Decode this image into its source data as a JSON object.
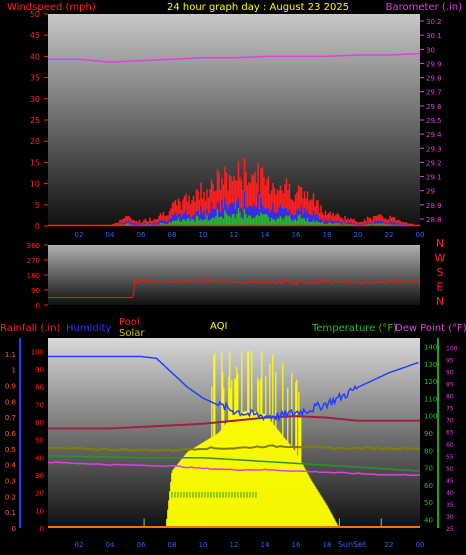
{
  "header": {
    "title": "24 hour graph day : August 23 2025",
    "wind_label": "Windspeed (mph)",
    "baro_label": "Barometer (.in)"
  },
  "bottom_labels": {
    "rainfall": "Rainfall (.in)",
    "humidity": "Humidity",
    "pool": "Pool",
    "solar": "Solar",
    "aqi": "AQI",
    "temperature": "Temperature (°F)",
    "dewpoint": "Dew Point (°F)",
    "sunset": "SunSet"
  },
  "colors": {
    "wind_high": "#ff2020",
    "wind_avg": "#2030ff",
    "wind_low": "#20c020",
    "barometer": "#e040e0",
    "direction": "#e02020",
    "humidity": "#2040ff",
    "temperature": "#a02040",
    "dewpoint": "#e040e0",
    "pool": "#808000",
    "solar": "#ffff00",
    "solar_green": "#30a030",
    "rain": "#ff7000",
    "label_red": "#ff2020",
    "label_yellow": "#ffff00",
    "label_blue": "#3030ff",
    "label_green": "#20c020",
    "label_magenta": "#e040e0"
  },
  "chart_data": [
    {
      "type": "area",
      "x_ticks": [
        "02",
        "04",
        "06",
        "08",
        "10",
        "12",
        "14",
        "16",
        "18",
        "20",
        "22",
        "00"
      ],
      "y_left_ticks": [
        "0",
        "5",
        "10",
        "15",
        "20",
        "25",
        "30",
        "35",
        "40",
        "45",
        "50"
      ],
      "y_left_range": [
        0,
        50
      ],
      "y_right_ticks": [
        "28.8",
        "28.9",
        "29",
        "29.1",
        "29.2",
        "29.3",
        "29.4",
        "29.5",
        "29.6",
        "29.7",
        "29.8",
        "29.9",
        "30",
        "30.1",
        "30.2"
      ],
      "y_right_range": [
        28.75,
        30.25
      ],
      "x_range": [
        0,
        24
      ],
      "series": [
        {
          "name": "Barometer",
          "x": [
            0,
            2,
            4,
            6,
            8,
            10,
            12,
            14,
            16,
            18,
            20,
            22,
            24
          ],
          "values": [
            29.93,
            29.93,
            29.91,
            29.92,
            29.93,
            29.94,
            29.94,
            29.95,
            29.95,
            29.95,
            29.96,
            29.96,
            29.97
          ]
        },
        {
          "name": "Windspeed",
          "x": [
            0,
            4,
            5,
            6,
            7,
            8,
            9,
            10,
            11,
            12,
            13,
            14,
            15,
            16,
            17,
            18,
            19,
            20,
            21,
            22,
            23,
            24
          ],
          "values": [
            0,
            0,
            2,
            1,
            2,
            4,
            6,
            8,
            10,
            11,
            12,
            10,
            9,
            8,
            6,
            3,
            2,
            1,
            2,
            2,
            1,
            0
          ]
        }
      ]
    },
    {
      "type": "line",
      "y_ticks": [
        "360",
        "270",
        "180",
        "90",
        "0"
      ],
      "y_range": [
        0,
        360
      ],
      "compass": [
        "N",
        "W",
        "S",
        "E",
        "N"
      ],
      "series": [
        {
          "name": "Wind direction",
          "x": [
            0,
            5.5,
            5.6,
            8,
            10,
            12,
            14,
            16,
            18,
            20,
            22,
            24
          ],
          "values": [
            45,
            45,
            140,
            140,
            145,
            140,
            135,
            135,
            140,
            135,
            140,
            140
          ]
        }
      ]
    },
    {
      "type": "area",
      "x_ticks": [
        "02",
        "04",
        "06",
        "08",
        "10",
        "12",
        "14",
        "16",
        "18",
        "20",
        "22",
        "00"
      ],
      "rain_ticks": [
        "0",
        "0.1",
        "0.2",
        "0.3",
        "0.4",
        "0.5",
        "0.6",
        "0.7",
        "0.8",
        "0.9",
        "1",
        "1.1"
      ],
      "rain_range": [
        0,
        1.2
      ],
      "humidity_ticks": [
        "0",
        "10",
        "20",
        "30",
        "40",
        "50",
        "60",
        "70",
        "80",
        "90",
        "100"
      ],
      "humidity_range": [
        0,
        100
      ],
      "temp_ticks": [
        "40",
        "50",
        "60",
        "70",
        "80",
        "90",
        "100",
        "110",
        "120",
        "130",
        "140"
      ],
      "temp_range": [
        35,
        145
      ],
      "dew_ticks": [
        "25",
        "30",
        "35",
        "40",
        "45",
        "50",
        "55",
        "60",
        "65",
        "70",
        "75",
        "80",
        "85",
        "90",
        "95",
        "100"
      ],
      "series": [
        {
          "name": "Humidity",
          "x": [
            0,
            2,
            4,
            5,
            6,
            7,
            8,
            9,
            10,
            11,
            12,
            13,
            14,
            15,
            16,
            17,
            18,
            19,
            20,
            21,
            22,
            23,
            24
          ],
          "values": [
            95,
            95,
            95,
            95,
            95,
            94,
            86,
            78,
            72,
            68,
            65,
            63,
            62,
            62,
            64,
            66,
            69,
            73,
            78,
            82,
            86,
            89,
            92
          ]
        },
        {
          "name": "Temperature",
          "x": [
            0,
            4,
            8,
            10,
            12,
            14,
            16,
            18,
            20,
            22,
            24
          ],
          "values": [
            99,
            99,
            101,
            102,
            104,
            106,
            107,
            106,
            104,
            104,
            104
          ]
        },
        {
          "name": "Dew Point",
          "x": [
            0,
            4,
            8,
            10,
            12,
            14,
            16,
            18,
            20,
            22,
            24
          ],
          "values": [
            56,
            54,
            53,
            51,
            50,
            50,
            49,
            48,
            47,
            46,
            46
          ]
        },
        {
          "name": "Pool",
          "x": [
            0,
            6,
            8,
            10,
            12,
            14,
            16,
            18,
            20,
            22,
            24
          ],
          "values": [
            0.42,
            0.41,
            0.41,
            0.42,
            0.42,
            0.43,
            0.43,
            0.42,
            0.42,
            0.42,
            0.42
          ]
        },
        {
          "name": "Solar",
          "x": [
            0,
            7.6,
            8,
            9,
            10,
            11,
            12,
            13,
            14,
            15,
            16,
            17,
            18,
            18.8,
            19,
            24
          ],
          "values": [
            0,
            0,
            0.3,
            0.4,
            0.45,
            0.5,
            0.6,
            0.62,
            0.6,
            0.5,
            0.4,
            0.25,
            0.12,
            0,
            0,
            0
          ]
        }
      ]
    }
  ]
}
